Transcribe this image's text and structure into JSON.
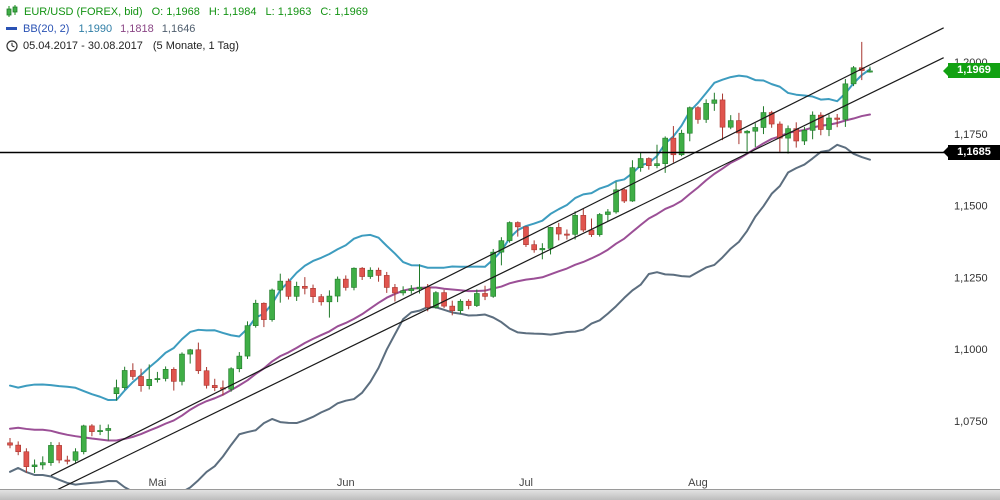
{
  "legend": {
    "symbol": "EUR/USD (FOREX, bid)",
    "quote": {
      "o_label": "O:",
      "o": "1,1968",
      "h_label": "H:",
      "h": "1,1984",
      "l_label": "L:",
      "l": "1,1963",
      "c_label": "C:",
      "c": "1,1969"
    },
    "bb_label": "BB(20, 2)",
    "bb_values": {
      "upper": "1,1990",
      "middle": "1,1818",
      "lower": "1,1646"
    },
    "date_range": "05.04.2017 - 30.08.2017",
    "duration": "(5 Monate, 1 Tag)"
  },
  "badges": {
    "last_price": "1,1969",
    "hline": "1,1685"
  },
  "axis": {
    "price_labels": [
      "1,2000",
      "1,1750",
      "1,1500",
      "1,1250",
      "1,1000",
      "1,0750"
    ],
    "month_labels": [
      "Mai",
      "Jun",
      "Jul",
      "Aug"
    ]
  },
  "colors": {
    "up_candle": "#3fae46",
    "up_border": "#207a2a",
    "down_candle": "#e0544e",
    "down_border": "#a8362f",
    "bb_upper": "#3d9cbf",
    "bb_middle": "#9b4f96",
    "bb_lower": "#5c6e7f",
    "trendline": "#1a1a1a",
    "hline": "#000000",
    "badge_last": "#12a112",
    "badge_hline": "#000000",
    "legend_green": "#139313",
    "legend_blue": "#2a52b4"
  },
  "chart_data": {
    "type": "candlestick",
    "title": "EUR/USD (FOREX, bid)",
    "timeframe": "1 Tag",
    "range_text": "05.04.2017 - 30.08.2017 (5 Monate, 1 Tag)",
    "ylim": [
      1.048,
      1.2216
    ],
    "grid": false,
    "y_ticks": [
      1.2,
      1.175,
      1.15,
      1.125,
      1.1,
      1.075
    ],
    "x_month_labels": [
      {
        "label": "Mai",
        "index": 18
      },
      {
        "label": "Jun",
        "index": 41
      },
      {
        "label": "Jul",
        "index": 63
      },
      {
        "label": "Aug",
        "index": 84
      }
    ],
    "hline": 1.1685,
    "last_price": 1.1969,
    "indicator": {
      "name": "BB(20, 2)",
      "window": 20,
      "stdev": 2,
      "last_upper": 1.199,
      "last_middle": 1.1818,
      "last_lower": 1.1646
    },
    "trendlines": [
      {
        "i1": 5,
        "p1": 1.056,
        "i2": 114,
        "p2": 1.2119
      },
      {
        "i1": 5,
        "p1": 1.05,
        "i2": 114,
        "p2": 1.2015
      }
    ],
    "pre_closes": [
      1.0541,
      1.0578,
      1.0672,
      1.0654,
      1.0606,
      1.0737,
      1.0767,
      1.0739,
      1.0739,
      1.0812,
      1.0797,
      1.0783,
      1.0797,
      1.0865,
      1.0812,
      1.0766,
      1.0676,
      1.0652,
      1.0671,
      1.0674
    ],
    "candles": [
      [
        1.0674,
        1.0691,
        1.0655,
        1.0666
      ],
      [
        1.0666,
        1.0679,
        1.0631,
        1.0643
      ],
      [
        1.0643,
        1.0655,
        1.057,
        1.0591
      ],
      [
        1.0591,
        1.0616,
        1.0569,
        1.0597
      ],
      [
        1.0597,
        1.0627,
        1.0581,
        1.0605
      ],
      [
        1.0605,
        1.0677,
        1.0594,
        1.0665
      ],
      [
        1.0665,
        1.0676,
        1.0603,
        1.0614
      ],
      [
        1.0614,
        1.0629,
        1.0599,
        1.0613
      ],
      [
        1.0613,
        1.0655,
        1.0605,
        1.0643
      ],
      [
        1.0643,
        1.0737,
        1.0634,
        1.0733
      ],
      [
        1.0733,
        1.0739,
        1.0697,
        1.0713
      ],
      [
        1.0713,
        1.0737,
        1.0701,
        1.0717
      ],
      [
        1.0717,
        1.0738,
        1.0682,
        1.0724
      ],
      [
        1.0845,
        1.0894,
        1.0821,
        1.0866
      ],
      [
        1.0866,
        1.0939,
        1.0859,
        1.0926
      ],
      [
        1.0926,
        1.0951,
        1.0893,
        1.0905
      ],
      [
        1.0905,
        1.0932,
        1.0852,
        1.0873
      ],
      [
        1.0873,
        1.0947,
        1.086,
        1.0895
      ],
      [
        1.0895,
        1.0921,
        1.0884,
        1.0898
      ],
      [
        1.0898,
        1.094,
        1.0888,
        1.093
      ],
      [
        1.093,
        1.0937,
        1.0856,
        1.0888
      ],
      [
        1.0888,
        1.0989,
        1.0874,
        1.0983
      ],
      [
        1.0983,
        1.1001,
        1.095,
        1.0998
      ],
      [
        1.0998,
        1.1023,
        1.0914,
        1.0925
      ],
      [
        1.0925,
        1.0938,
        1.0863,
        1.0874
      ],
      [
        1.0874,
        1.0897,
        1.0854,
        1.0866
      ],
      [
        1.0866,
        1.0891,
        1.0839,
        1.0861
      ],
      [
        1.0861,
        1.0937,
        1.0852,
        1.0932
      ],
      [
        1.0932,
        1.099,
        1.092,
        1.0976
      ],
      [
        1.0976,
        1.1097,
        1.0966,
        1.1082
      ],
      [
        1.1082,
        1.1172,
        1.1075,
        1.116
      ],
      [
        1.116,
        1.1163,
        1.1077,
        1.1103
      ],
      [
        1.1103,
        1.1211,
        1.1096,
        1.1206
      ],
      [
        1.1206,
        1.1263,
        1.1162,
        1.1237
      ],
      [
        1.1237,
        1.1246,
        1.1173,
        1.1184
      ],
      [
        1.1184,
        1.1235,
        1.1168,
        1.1219
      ],
      [
        1.1219,
        1.1251,
        1.1191,
        1.1212
      ],
      [
        1.1212,
        1.1225,
        1.1161,
        1.1183
      ],
      [
        1.1183,
        1.1192,
        1.1152,
        1.1165
      ],
      [
        1.1165,
        1.1205,
        1.111,
        1.1185
      ],
      [
        1.1185,
        1.1253,
        1.1164,
        1.1244
      ],
      [
        1.1244,
        1.1257,
        1.1204,
        1.1215
      ],
      [
        1.1215,
        1.1285,
        1.1205,
        1.1282
      ],
      [
        1.1282,
        1.1286,
        1.1241,
        1.1253
      ],
      [
        1.1253,
        1.1285,
        1.1245,
        1.1275
      ],
      [
        1.1275,
        1.1284,
        1.1235,
        1.1257
      ],
      [
        1.1257,
        1.1269,
        1.1196,
        1.1215
      ],
      [
        1.1215,
        1.1227,
        1.1166,
        1.1196
      ],
      [
        1.1196,
        1.1219,
        1.1187,
        1.1204
      ],
      [
        1.1204,
        1.1223,
        1.1193,
        1.121
      ],
      [
        1.121,
        1.1296,
        1.1194,
        1.1216
      ],
      [
        1.1216,
        1.1227,
        1.1132,
        1.1146
      ],
      [
        1.1146,
        1.1202,
        1.1141,
        1.1197
      ],
      [
        1.1197,
        1.1207,
        1.1143,
        1.115
      ],
      [
        1.115,
        1.1169,
        1.1118,
        1.1134
      ],
      [
        1.1134,
        1.1174,
        1.1122,
        1.1167
      ],
      [
        1.1167,
        1.1174,
        1.1139,
        1.1152
      ],
      [
        1.1152,
        1.1208,
        1.1147,
        1.1194
      ],
      [
        1.1194,
        1.1221,
        1.1171,
        1.1184
      ],
      [
        1.1184,
        1.1349,
        1.1179,
        1.1338
      ],
      [
        1.1338,
        1.139,
        1.1292,
        1.1378
      ],
      [
        1.1378,
        1.1445,
        1.1371,
        1.1441
      ],
      [
        1.1441,
        1.1445,
        1.1392,
        1.1426
      ],
      [
        1.1426,
        1.1428,
        1.1356,
        1.1364
      ],
      [
        1.1364,
        1.1379,
        1.1336,
        1.1346
      ],
      [
        1.1346,
        1.1369,
        1.1313,
        1.1351
      ],
      [
        1.1351,
        1.1426,
        1.133,
        1.1424
      ],
      [
        1.1424,
        1.144,
        1.1379,
        1.1401
      ],
      [
        1.1401,
        1.1417,
        1.1382,
        1.14
      ],
      [
        1.14,
        1.148,
        1.1382,
        1.1466
      ],
      [
        1.1466,
        1.149,
        1.1408,
        1.1415
      ],
      [
        1.1415,
        1.1455,
        1.1391,
        1.1399
      ],
      [
        1.1399,
        1.1474,
        1.1392,
        1.1469
      ],
      [
        1.1469,
        1.1488,
        1.1446,
        1.1478
      ],
      [
        1.1478,
        1.1583,
        1.1472,
        1.1555
      ],
      [
        1.1555,
        1.1559,
        1.1509,
        1.1516
      ],
      [
        1.1516,
        1.1658,
        1.1513,
        1.1632
      ],
      [
        1.1632,
        1.1684,
        1.1618,
        1.1664
      ],
      [
        1.1664,
        1.1668,
        1.1625,
        1.1639
      ],
      [
        1.1639,
        1.1712,
        1.163,
        1.1646
      ],
      [
        1.1646,
        1.1741,
        1.1614,
        1.1735
      ],
      [
        1.1735,
        1.1777,
        1.165,
        1.1677
      ],
      [
        1.1677,
        1.1764,
        1.1672,
        1.1752
      ],
      [
        1.1752,
        1.1845,
        1.1724,
        1.1841
      ],
      [
        1.1841,
        1.1846,
        1.1785,
        1.18
      ],
      [
        1.18,
        1.187,
        1.1788,
        1.1856
      ],
      [
        1.1856,
        1.1893,
        1.183,
        1.1868
      ],
      [
        1.1868,
        1.189,
        1.1728,
        1.1773
      ],
      [
        1.1773,
        1.1815,
        1.1766,
        1.1796
      ],
      [
        1.1796,
        1.1823,
        1.1714,
        1.1753
      ],
      [
        1.1753,
        1.1763,
        1.1689,
        1.1759
      ],
      [
        1.1759,
        1.1787,
        1.1704,
        1.1772
      ],
      [
        1.1772,
        1.1846,
        1.1749,
        1.1824
      ],
      [
        1.1824,
        1.183,
        1.1771,
        1.1784
      ],
      [
        1.1784,
        1.1793,
        1.1687,
        1.1735
      ],
      [
        1.1735,
        1.1779,
        1.1681,
        1.1768
      ],
      [
        1.1768,
        1.179,
        1.1702,
        1.1725
      ],
      [
        1.1725,
        1.1774,
        1.1711,
        1.1762
      ],
      [
        1.1762,
        1.1828,
        1.1731,
        1.1815
      ],
      [
        1.1815,
        1.1825,
        1.1745,
        1.1765
      ],
      [
        1.1765,
        1.1817,
        1.1742,
        1.1805
      ],
      [
        1.1805,
        1.1819,
        1.1773,
        1.18
      ],
      [
        1.18,
        1.1941,
        1.1774,
        1.1924
      ],
      [
        1.1924,
        1.1986,
        1.1916,
        1.198
      ],
      [
        1.198,
        1.207,
        1.1937,
        1.197
      ],
      [
        1.1968,
        1.1984,
        1.1963,
        1.1969
      ]
    ]
  }
}
